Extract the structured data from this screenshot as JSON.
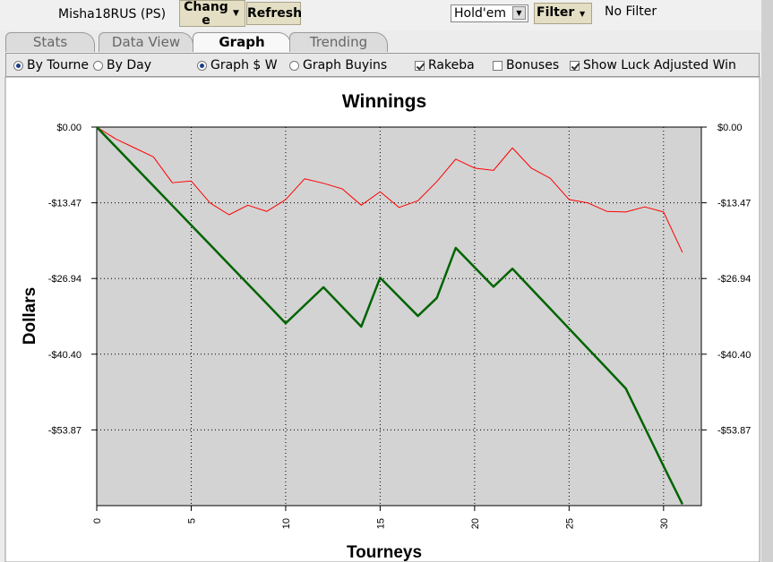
{
  "toolbar": {
    "player": "Misha18RUS (PS)",
    "change_button": "Change",
    "refresh_button": "Refresh",
    "game_select": "Hold'em",
    "filter_button": "Filter",
    "filter_status": "No Filter"
  },
  "tabs": [
    {
      "label": "Stats",
      "active": false
    },
    {
      "label": "Data View",
      "active": false
    },
    {
      "label": "Graph",
      "active": true
    },
    {
      "label": "Trending",
      "active": false
    }
  ],
  "options": [
    {
      "label": "By Tourne",
      "kind": "radio",
      "checked": true
    },
    {
      "label": "By Day",
      "kind": "radio",
      "checked": false
    },
    {
      "label": "Graph $ W",
      "kind": "radio",
      "checked": true
    },
    {
      "label": "Graph Buyins",
      "kind": "radio",
      "checked": false
    },
    {
      "label": "Rakeba",
      "kind": "checkbox",
      "checked": true
    },
    {
      "label": "Bonuses",
      "kind": "checkbox",
      "checked": false
    },
    {
      "label": "Show Luck Adjusted Win",
      "kind": "checkbox",
      "checked": true
    }
  ],
  "chart_data": {
    "type": "line",
    "title": "Winnings",
    "x_label": "Tourneys",
    "y_label": "Dollars",
    "x": [
      0,
      1,
      2,
      3,
      4,
      5,
      6,
      7,
      8,
      9,
      10,
      11,
      12,
      13,
      14,
      15,
      16,
      17,
      18,
      19,
      20,
      21,
      22,
      23,
      24,
      25,
      26,
      27,
      28,
      29,
      30,
      31
    ],
    "series": [
      {
        "color": "#ff0000",
        "width": 1,
        "values": [
          0,
          -2.1,
          -3.7,
          -5.3,
          -9.9,
          -9.6,
          -13.5,
          -15.6,
          -13.9,
          -15.0,
          -12.9,
          -9.2,
          -10.0,
          -11.0,
          -13.9,
          -11.5,
          -14.3,
          -13.1,
          -9.7,
          -5.7,
          -7.3,
          -7.7,
          -3.7,
          -7.3,
          -9.1,
          -12.9,
          -13.5,
          -15.0,
          -15.1,
          -14.2,
          -15.1,
          -22.3
        ]
      },
      {
        "color": "#006400",
        "width": 2.5,
        "values": [
          0,
          -3.49,
          -6.98,
          -10.47,
          -13.96,
          -17.45,
          -20.94,
          -24.43,
          -27.92,
          -31.41,
          -34.9,
          -31.7,
          -28.5,
          -32.0,
          -35.5,
          -26.8,
          -30.2,
          -33.6,
          -30.4,
          -21.5,
          -24.95,
          -28.4,
          -25.2,
          -28.75,
          -32.3,
          -35.85,
          -39.4,
          -42.95,
          -46.5,
          -53.4,
          -60.3,
          -67.1
        ]
      }
    ],
    "xlim": [
      0,
      32
    ],
    "xticks": [
      0,
      5,
      10,
      15,
      20,
      25,
      30
    ],
    "ylim": [
      -67.34,
      0
    ],
    "yticks": [
      {
        "value": 0,
        "label": "$0.00"
      },
      {
        "value": -13.47,
        "label": "-$13.47"
      },
      {
        "value": -26.94,
        "label": "-$26.94"
      },
      {
        "value": -40.4,
        "label": "-$40.40"
      },
      {
        "value": -53.87,
        "label": "-$53.87"
      }
    ],
    "grid": true,
    "plot_background": "#d3d3d3"
  }
}
